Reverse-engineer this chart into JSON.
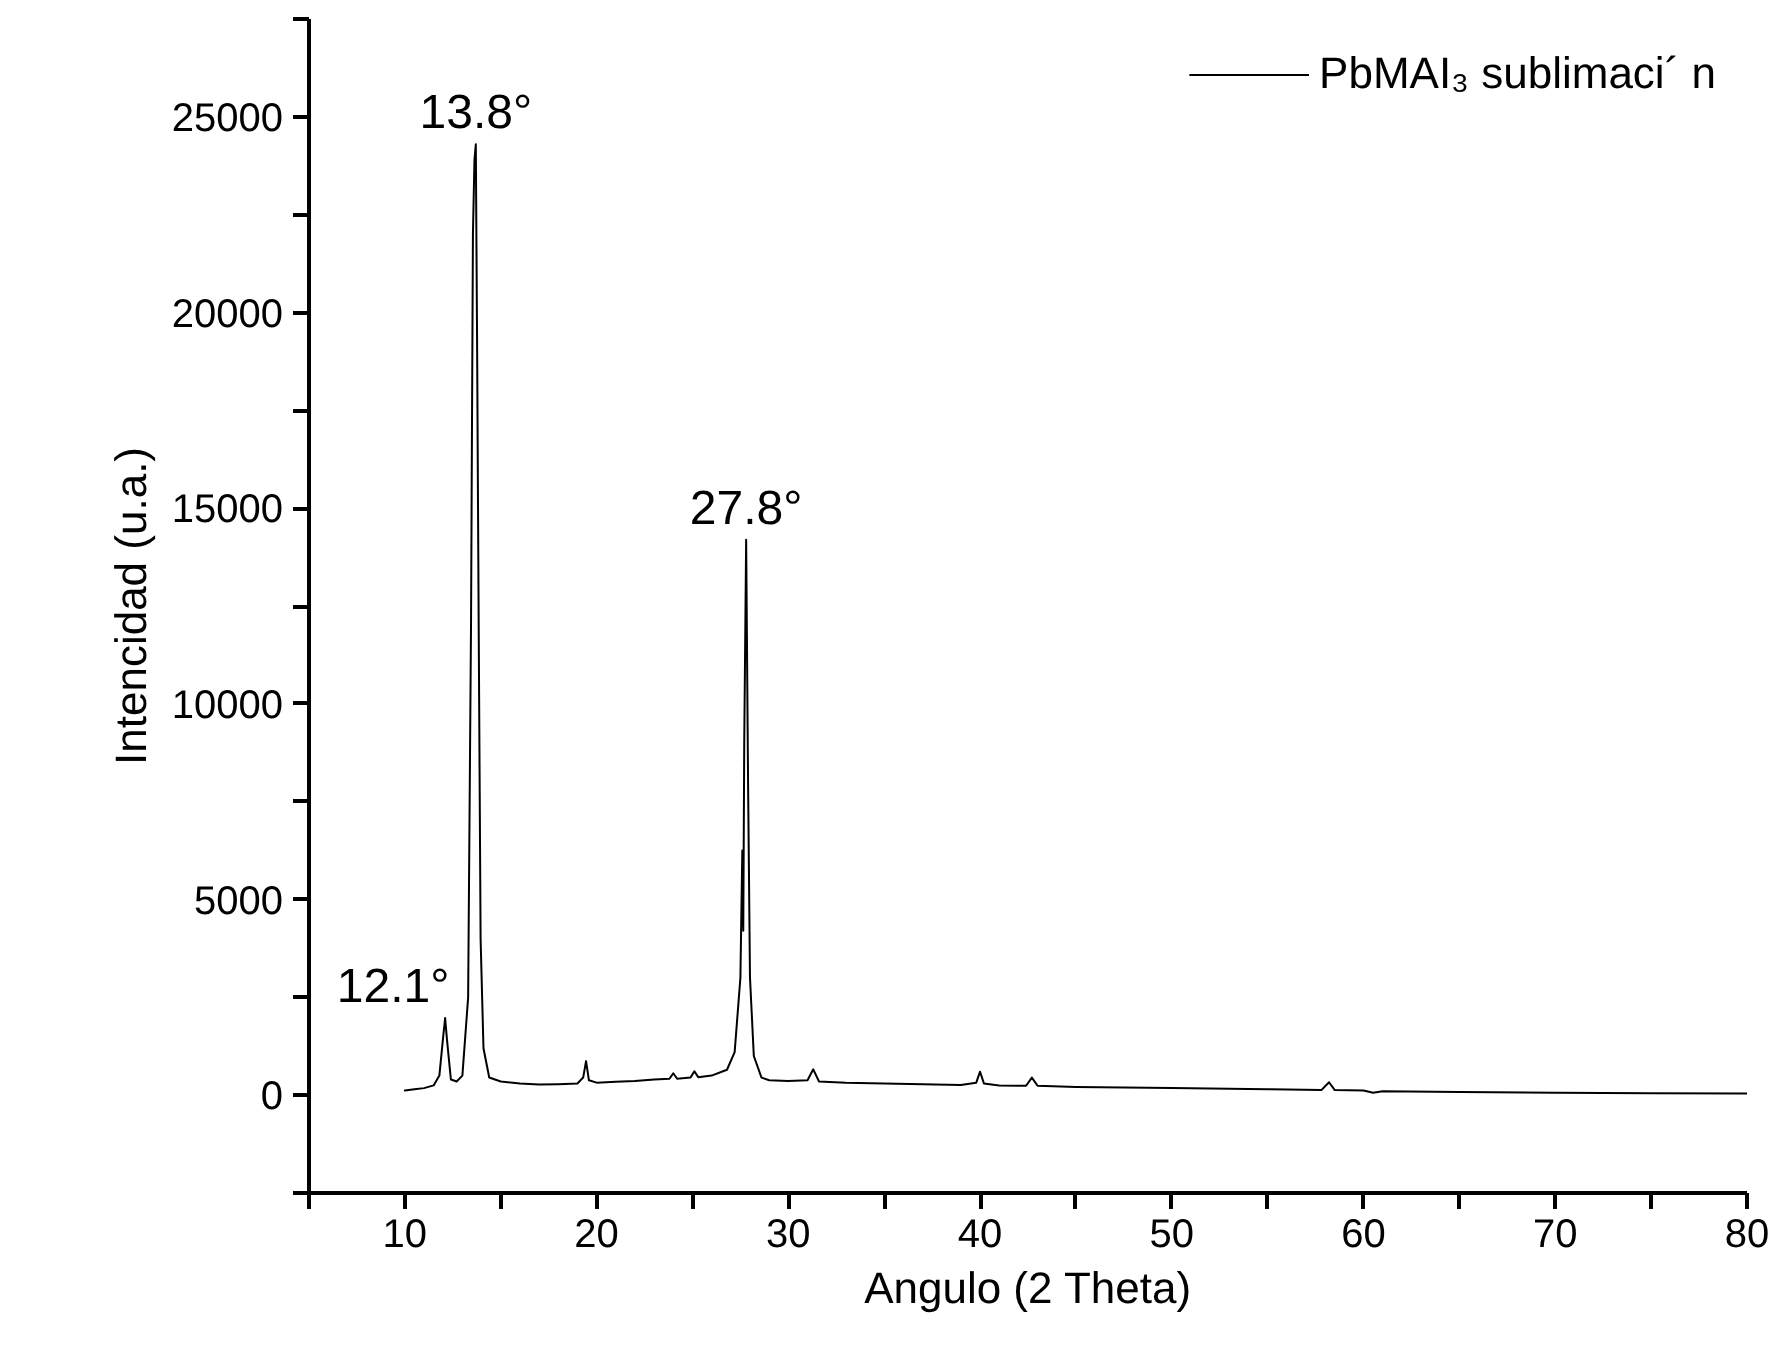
{
  "chart_data": {
    "type": "line",
    "xlabel": "Angulo (2 Theta)",
    "ylabel": "Intencidad (u.a.)",
    "xlim": [
      5,
      80
    ],
    "xticks": [
      {
        "value": 5,
        "label": null
      },
      10,
      {
        "value": 15,
        "label": null
      },
      20,
      {
        "value": 25,
        "label": null
      },
      30,
      {
        "value": 35,
        "label": null
      },
      40,
      {
        "value": 45,
        "label": null
      },
      50,
      {
        "value": 55,
        "label": null
      },
      60,
      {
        "value": 65,
        "label": null
      },
      70,
      {
        "value": 75,
        "label": null
      },
      80
    ],
    "ylim": [
      -2500,
      27500
    ],
    "yticks": [
      {
        "value": -2500,
        "label": null
      },
      0,
      {
        "value": 2500,
        "label": null
      },
      5000,
      {
        "value": 7500,
        "label": null
      },
      10000,
      {
        "value": 12500,
        "label": null
      },
      15000,
      {
        "value": 17500,
        "label": null
      },
      20000,
      {
        "value": 22500,
        "label": null
      },
      25000,
      {
        "value": 27500,
        "label": null
      }
    ],
    "grid": false,
    "legend": "top right",
    "marker": "none",
    "line_style": "solid",
    "series": [
      {
        "name": "PbMAI₃ sublimaci´ n",
        "color": "#000000",
        "x": [
          10,
          10.5,
          11,
          11.5,
          11.8,
          12.0,
          12.1,
          12.2,
          12.4,
          12.7,
          13.0,
          13.3,
          13.45,
          13.55,
          13.63,
          13.7,
          13.77,
          13.85,
          13.95,
          14.1,
          14.4,
          15,
          16,
          17,
          18,
          19,
          19.3,
          19.45,
          19.6,
          20,
          21,
          22,
          23,
          23.8,
          24.0,
          24.2,
          24.9,
          25.1,
          25.3,
          26,
          26.8,
          27.2,
          27.5,
          27.6,
          27.65,
          27.7,
          27.8,
          27.9,
          28.0,
          28.2,
          28.6,
          29,
          30,
          31,
          31.3,
          31.6,
          33,
          35,
          37,
          39,
          39.8,
          40.0,
          40.2,
          41,
          42.4,
          42.7,
          43,
          45,
          50,
          55,
          57.8,
          58.2,
          58.5,
          60,
          60.5,
          61,
          65,
          70,
          75,
          80
        ],
        "values": [
          120,
          150,
          180,
          250,
          500,
          1500,
          1970,
          1400,
          400,
          350,
          500,
          2500,
          12000,
          22000,
          23900,
          24300,
          19000,
          12000,
          4000,
          1200,
          450,
          350,
          300,
          270,
          280,
          300,
          450,
          870,
          380,
          320,
          340,
          360,
          400,
          420,
          560,
          420,
          450,
          610,
          460,
          500,
          650,
          1100,
          3000,
          6250,
          4200,
          9000,
          14190,
          8000,
          3000,
          1000,
          450,
          380,
          360,
          380,
          660,
          350,
          320,
          300,
          280,
          260,
          320,
          600,
          300,
          250,
          240,
          450,
          240,
          210,
          180,
          150,
          130,
          330,
          130,
          120,
          60,
          100,
          80,
          60,
          50,
          40
        ]
      }
    ],
    "annotations": [
      {
        "text": "13.8°",
        "x": 13.7,
        "y": 24300
      },
      {
        "text": "27.8°",
        "x": 27.8,
        "y": 14190
      },
      {
        "text": "12.1°",
        "x": 12.1,
        "y": 1970
      }
    ]
  }
}
